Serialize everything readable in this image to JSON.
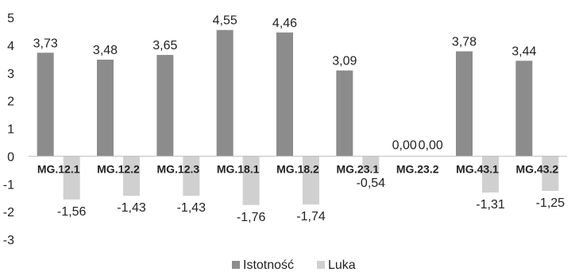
{
  "chart_data": {
    "type": "bar",
    "categories": [
      "MG.12.1",
      "MG.12.2",
      "MG.12.3",
      "MG.18.1",
      "MG.18.2",
      "MG.23.1",
      "MG.23.2",
      "MG.43.1",
      "MG.43.2"
    ],
    "series": [
      {
        "name": "Istotność",
        "values": [
          3.73,
          3.48,
          3.65,
          4.55,
          4.46,
          3.09,
          0.0,
          3.78,
          3.44
        ],
        "labels": [
          "3,73",
          "3,48",
          "3,65",
          "4,55",
          "4,46",
          "3,09",
          "0,00",
          "3,78",
          "3,44"
        ],
        "color": "#8c8c8c"
      },
      {
        "name": "Luka",
        "values": [
          -1.56,
          -1.43,
          -1.43,
          -1.76,
          -1.74,
          -0.54,
          0.0,
          -1.31,
          -1.25
        ],
        "labels": [
          "-1,56",
          "-1,43",
          "-1,43",
          "-1,76",
          "-1,74",
          "-0,54",
          "0,00",
          "-1,31",
          "-1,25"
        ],
        "color": "#d0d0d0"
      }
    ],
    "yticks": [
      "5",
      "4",
      "3",
      "2",
      "1",
      "0",
      "-1",
      "-2",
      "-3"
    ],
    "ylim": [
      -3,
      5
    ],
    "grid": false,
    "legend": "bottom-center",
    "title": "",
    "xlabel": "",
    "ylabel": ""
  }
}
